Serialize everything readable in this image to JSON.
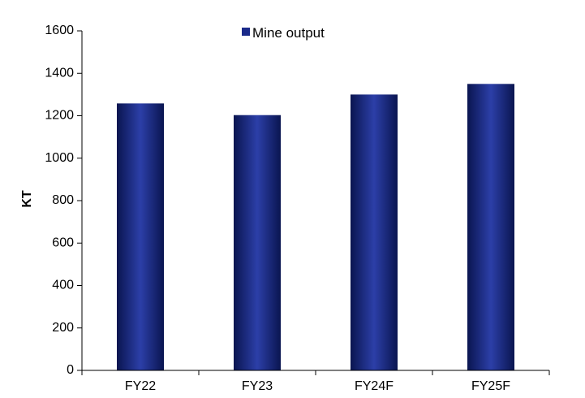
{
  "chart_data": {
    "type": "bar",
    "categories": [
      "FY22",
      "FY23",
      "FY24F",
      "FY25F"
    ],
    "series": [
      {
        "name": "Mine output",
        "values": [
          1258,
          1203,
          1300,
          1350
        ]
      }
    ],
    "title": "",
    "xlabel": "",
    "ylabel": "KT",
    "ylim": [
      0,
      1600
    ],
    "yticks": [
      "0",
      "200",
      "400",
      "600",
      "800",
      "1000",
      "1200",
      "1400",
      "1600"
    ],
    "grid": false,
    "legend_position": "top-center",
    "colors": {
      "bar": "#1a2a8a",
      "bar_edge": "#0a1550",
      "bar_highlight": "#2c3fa8",
      "axis": "#000000"
    }
  }
}
